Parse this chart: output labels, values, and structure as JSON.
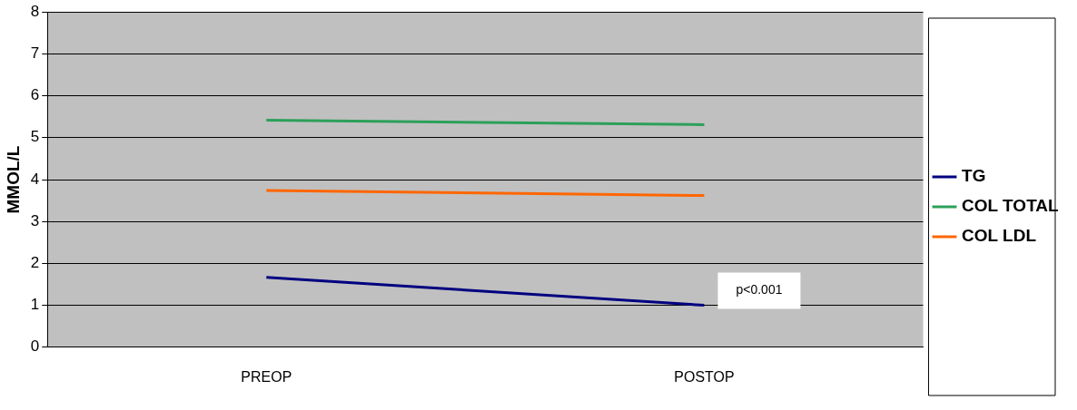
{
  "chart_data": {
    "type": "line",
    "ylabel": "MMOL/L",
    "categories": [
      "PREOP",
      "POSTOP"
    ],
    "series": [
      {
        "name": "TG",
        "color": "#000080",
        "values": [
          1.67,
          1.0
        ]
      },
      {
        "name": "COL TOTAL",
        "color": "#2ca05a",
        "values": [
          5.42,
          5.31
        ]
      },
      {
        "name": "COL LDL",
        "color": "#ff6600",
        "values": [
          3.74,
          3.62
        ]
      }
    ],
    "ylim": [
      0,
      8
    ],
    "yticks": [
      0,
      1,
      2,
      3,
      4,
      5,
      6,
      7,
      8
    ],
    "grid": "y",
    "legend": "right",
    "marker": "none",
    "line_style": "solid",
    "annotations": [
      {
        "text": "p<0.001",
        "x": "POSTOP",
        "y": 1.0
      }
    ]
  }
}
